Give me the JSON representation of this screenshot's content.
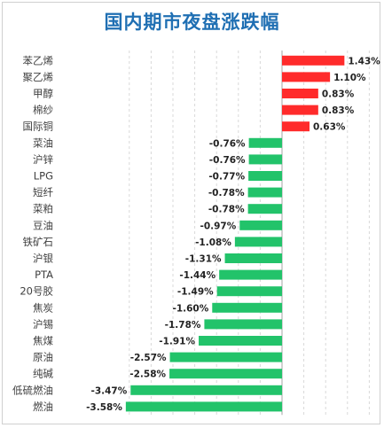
{
  "chart_data": {
    "type": "bar",
    "orientation": "horizontal",
    "title": "国内期市夜盘涨跌幅",
    "xlabel": "",
    "ylabel": "",
    "xlim": [
      -3.6,
      2.0
    ],
    "grid": true,
    "legend": "none",
    "positive_color": "#ff2b2b",
    "negative_color": "#22c36a",
    "categories": [
      "苯乙烯",
      "聚乙烯",
      "甲醇",
      "棉纱",
      "国际铜",
      "菜油",
      "沪锌",
      "LPG",
      "短纤",
      "菜粕",
      "豆油",
      "铁矿石",
      "沪银",
      "PTA",
      "20号胶",
      "焦炭",
      "沪锡",
      "焦煤",
      "原油",
      "纯碱",
      "低硫燃油",
      "燃油"
    ],
    "values": [
      1.43,
      1.1,
      0.83,
      0.83,
      0.63,
      -0.76,
      -0.76,
      -0.77,
      -0.78,
      -0.78,
      -0.97,
      -1.08,
      -1.31,
      -1.44,
      -1.49,
      -1.6,
      -1.78,
      -1.91,
      -2.57,
      -2.58,
      -3.47,
      -3.58
    ],
    "labels": [
      "1.43%",
      "1.10%",
      "0.83%",
      "0.83%",
      "0.63%",
      "-0.76%",
      "-0.76%",
      "-0.77%",
      "-0.78%",
      "-0.78%",
      "-0.97%",
      "-1.08%",
      "-1.31%",
      "-1.44%",
      "-1.49%",
      "-1.60%",
      "-1.78%",
      "-1.91%",
      "-2.57%",
      "-2.58%",
      "-3.47%",
      "-3.58%"
    ]
  }
}
